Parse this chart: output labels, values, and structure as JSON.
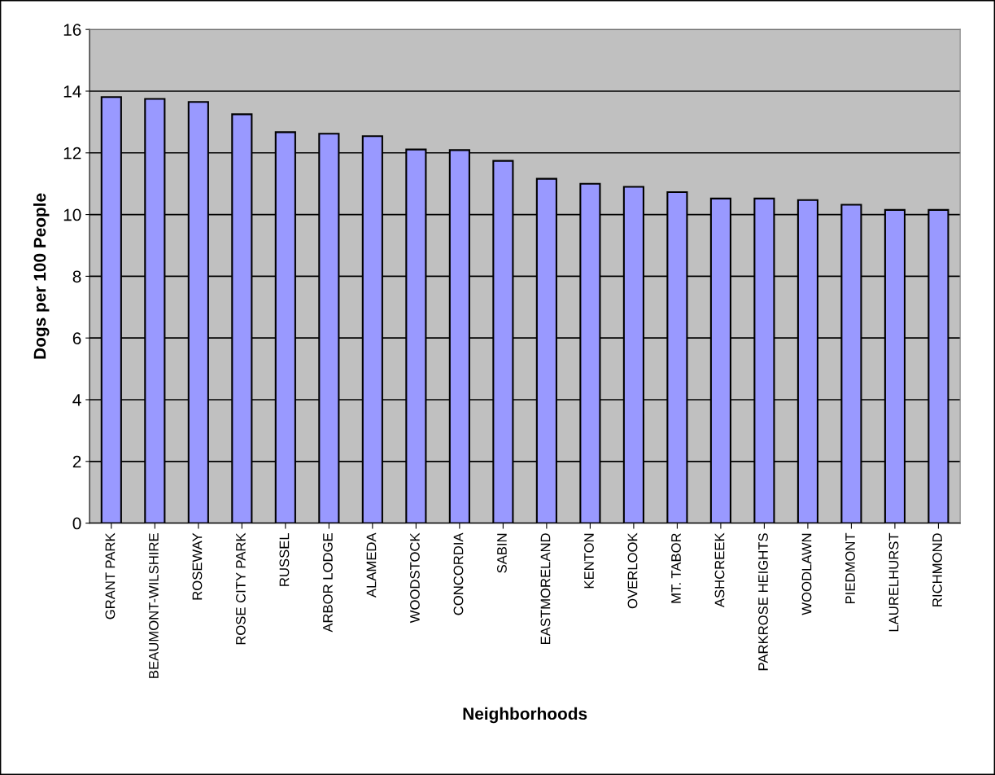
{
  "chart_data": {
    "type": "bar",
    "xlabel": "Neighborhoods",
    "ylabel": "Dogs per 100 People",
    "categories": [
      "GRANT PARK",
      "BEAUMONT-WILSHIRE",
      "ROSEWAY",
      "ROSE CITY PARK",
      "RUSSEL",
      "ARBOR LODGE",
      "ALAMEDA",
      "WOODSTOCK",
      "CONCORDIA",
      "SABIN",
      "EASTMORELAND",
      "KENTON",
      "OVERLOOK",
      "MT. TABOR",
      "ASHCREEK",
      "PARKROSE HEIGHTS",
      "WOODLAWN",
      "PIEDMONT",
      "LAURELHURST",
      "RICHMOND"
    ],
    "values": [
      13.81,
      13.75,
      13.65,
      13.25,
      12.67,
      12.62,
      12.54,
      12.11,
      12.09,
      11.74,
      11.16,
      11.0,
      10.9,
      10.73,
      10.52,
      10.52,
      10.47,
      10.32,
      10.15,
      10.15
    ],
    "color": "#9999ff",
    "ylim": [
      0,
      16
    ],
    "yticks": [
      0,
      2,
      4,
      6,
      8,
      10,
      12,
      14,
      16
    ],
    "grid": "y",
    "legend": false
  }
}
